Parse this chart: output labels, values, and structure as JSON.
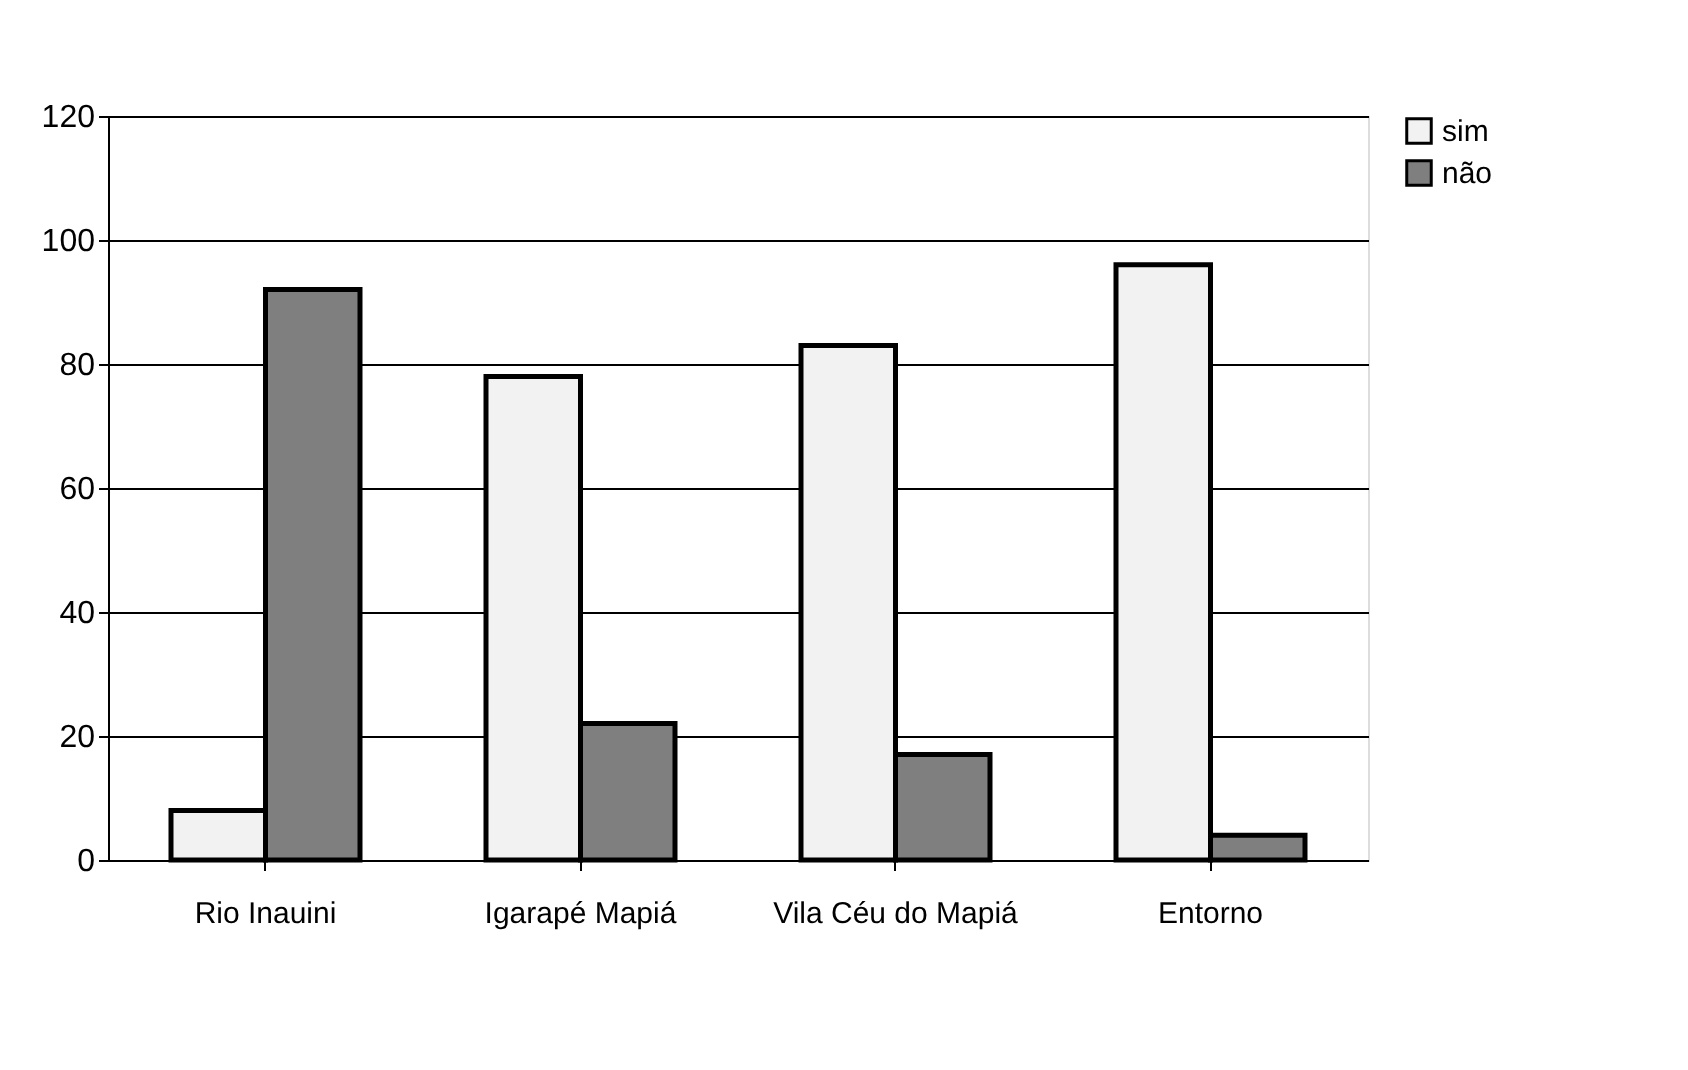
{
  "chart_data": {
    "type": "bar",
    "categories": [
      "Rio Inauini",
      "Igarapé Mapiá",
      "Vila Céu do Mapiá",
      "Entorno"
    ],
    "series": [
      {
        "name": "sim",
        "color": "#f2f2f2",
        "values": [
          8,
          78,
          83,
          96
        ]
      },
      {
        "name": "não",
        "color": "#7f7f7f",
        "values": [
          92,
          22,
          17,
          4
        ]
      }
    ],
    "ylim": [
      0,
      120
    ],
    "yticks": [
      0,
      20,
      40,
      60,
      80,
      100,
      120
    ],
    "grid": "y",
    "legend": "right"
  }
}
